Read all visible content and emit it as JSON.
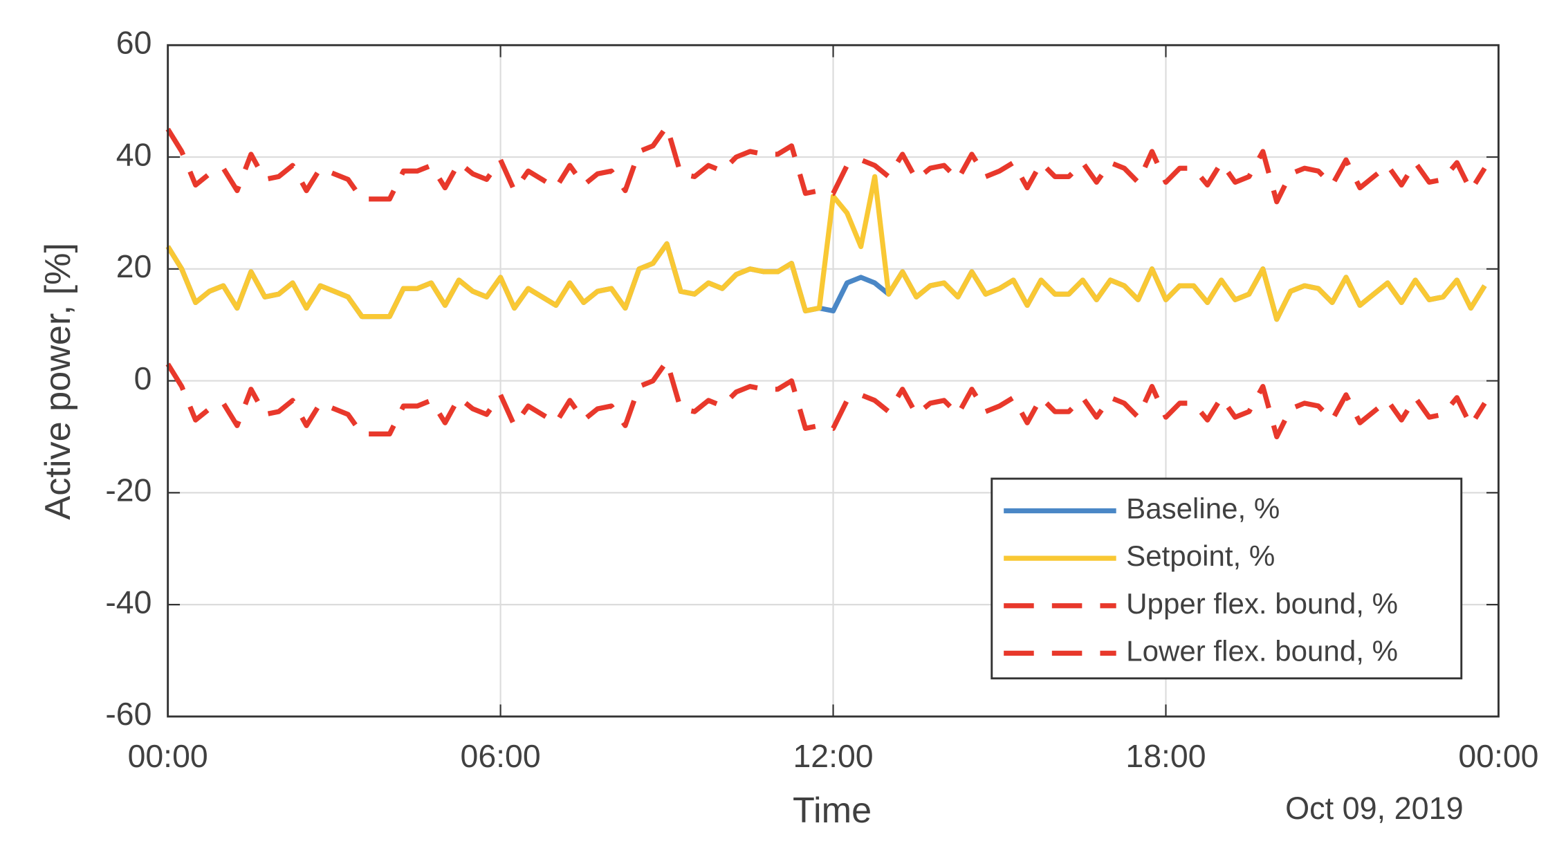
{
  "chart_data": {
    "type": "line",
    "xlabel": "Time",
    "ylabel": "Active power, [%]",
    "annotation": "Oct 09, 2019",
    "grid": true,
    "legend": "lower right",
    "xlim": [
      0,
      24
    ],
    "xticks": [
      {
        "value": 0,
        "label": "00:00"
      },
      {
        "value": 6,
        "label": "06:00"
      },
      {
        "value": 12,
        "label": "12:00"
      },
      {
        "value": 18,
        "label": "18:00"
      },
      {
        "value": 24,
        "label": "00:00"
      }
    ],
    "ylim": [
      -60,
      60
    ],
    "yticks": [
      -60,
      -40,
      -20,
      0,
      20,
      40,
      60
    ],
    "x": [
      0,
      0.25,
      0.5,
      0.75,
      1,
      1.25,
      1.5,
      1.75,
      2,
      2.25,
      2.5,
      2.75,
      3,
      3.25,
      3.5,
      3.75,
      4,
      4.25,
      4.5,
      4.75,
      5,
      5.25,
      5.5,
      5.75,
      6,
      6.25,
      6.5,
      6.75,
      7,
      7.25,
      7.5,
      7.75,
      8,
      8.25,
      8.5,
      8.75,
      9,
      9.25,
      9.5,
      9.75,
      10,
      10.25,
      10.5,
      10.75,
      11,
      11.25,
      11.5,
      11.75,
      12,
      12.25,
      12.5,
      12.75,
      13,
      13.25,
      13.5,
      13.75,
      14,
      14.25,
      14.5,
      14.75,
      15,
      15.25,
      15.5,
      15.75,
      16,
      16.25,
      16.5,
      16.75,
      17,
      17.25,
      17.5,
      17.75,
      18,
      18.25,
      18.5,
      18.75,
      19,
      19.25,
      19.5,
      19.75,
      20,
      20.25,
      20.5,
      20.75,
      21,
      21.25,
      21.5,
      21.75,
      22,
      22.25,
      22.5,
      22.75,
      23,
      23.25,
      23.5,
      23.75
    ],
    "series": [
      {
        "name": "Baseline, %",
        "color": "#4a87c6",
        "dash": false,
        "values": [
          24,
          20,
          14,
          16,
          17,
          13,
          19.5,
          15,
          15.5,
          17.5,
          13,
          17,
          16,
          15,
          11.5,
          11.5,
          11.5,
          16.5,
          16.5,
          17.5,
          13.5,
          18,
          16,
          15,
          18.5,
          13,
          16.5,
          15,
          13.5,
          17.5,
          14,
          16,
          16.5,
          13,
          20,
          21,
          24.5,
          16,
          15.5,
          17.5,
          16.5,
          19,
          20,
          19.5,
          19.5,
          21,
          12.5,
          13,
          12.5,
          17.5,
          18.5,
          17.5,
          15.5,
          19.5,
          15,
          17,
          17.5,
          15,
          19.5,
          15.5,
          16.5,
          18,
          13.5,
          18,
          15.5,
          15.5,
          18,
          14.5,
          18,
          17,
          14.5,
          20,
          14.5,
          17,
          17,
          14,
          18,
          14.5,
          15.5,
          20,
          11,
          16,
          17,
          16.5,
          14,
          18.5,
          13.5,
          15.5,
          17.5,
          14,
          18,
          14.5,
          15,
          18,
          13,
          17
        ]
      },
      {
        "name": "Setpoint, %",
        "color": "#f9c834",
        "dash": false,
        "values": [
          24,
          20,
          14,
          16,
          17,
          13,
          19.5,
          15,
          15.5,
          17.5,
          13,
          17,
          16,
          15,
          11.5,
          11.5,
          11.5,
          16.5,
          16.5,
          17.5,
          13.5,
          18,
          16,
          15,
          18.5,
          13,
          16.5,
          15,
          13.5,
          17.5,
          14,
          16,
          16.5,
          13,
          20,
          21,
          24.5,
          16,
          15.5,
          17.5,
          16.5,
          19,
          20,
          19.5,
          19.5,
          21,
          12.5,
          13,
          33,
          30,
          24,
          36.5,
          15.5,
          19.5,
          15,
          17,
          17.5,
          15,
          19.5,
          15.5,
          16.5,
          18,
          13.5,
          18,
          15.5,
          15.5,
          18,
          14.5,
          18,
          17,
          14.5,
          20,
          14.5,
          17,
          17,
          14,
          18,
          14.5,
          15.5,
          20,
          11,
          16,
          17,
          16.5,
          14,
          18.5,
          13.5,
          15.5,
          17.5,
          14,
          18,
          14.5,
          15,
          18,
          13,
          17
        ]
      },
      {
        "name": "Upper flex. bound, %",
        "color": "#e8382b",
        "dash": true,
        "values": [
          45,
          41,
          35,
          37,
          38,
          34,
          40.5,
          36,
          36.5,
          38.5,
          34,
          38,
          37,
          36,
          32.5,
          32.5,
          32.5,
          37.5,
          37.5,
          38.5,
          34.5,
          39,
          37,
          36,
          39.5,
          34,
          37.5,
          36,
          34.5,
          38.5,
          35,
          37,
          37.5,
          34,
          41,
          42,
          45.5,
          37,
          36.5,
          38.5,
          37.5,
          40,
          41,
          40.5,
          40.5,
          42,
          33.5,
          34,
          33.5,
          38.5,
          39.5,
          38.5,
          36.5,
          40.5,
          36,
          38,
          38.5,
          36,
          40.5,
          36.5,
          37.5,
          39,
          34.5,
          39,
          36.5,
          36.5,
          39,
          35.5,
          39,
          38,
          35.5,
          41,
          35.5,
          38,
          38,
          35,
          39,
          35.5,
          36.5,
          41,
          32,
          37,
          38,
          37.5,
          35,
          39.5,
          34.5,
          36.5,
          38.5,
          35,
          39,
          35.5,
          36,
          39,
          34,
          38
        ]
      },
      {
        "name": "Lower flex. bound, %",
        "color": "#e8382b",
        "dash": true,
        "values": [
          3,
          -1,
          -7,
          -5,
          -4,
          -8,
          -1.5,
          -6,
          -5.5,
          -3.5,
          -8,
          -4,
          -5,
          -6,
          -9.5,
          -9.5,
          -9.5,
          -4.5,
          -4.5,
          -3.5,
          -7.5,
          -3,
          -5,
          -6,
          -2.5,
          -8,
          -4.5,
          -6,
          -7.5,
          -3.5,
          -7,
          -5,
          -4.5,
          -8,
          -1,
          0,
          3.5,
          -5,
          -5.5,
          -3.5,
          -4.5,
          -2,
          -1,
          -1.5,
          -1.5,
          0,
          -8.5,
          -8,
          -8.5,
          -3.5,
          -2.5,
          -3.5,
          -5.5,
          -1.5,
          -6,
          -4,
          -3.5,
          -6,
          -1.5,
          -5.5,
          -4.5,
          -3,
          -7.5,
          -3,
          -5.5,
          -5.5,
          -3,
          -6.5,
          -3,
          -4,
          -6.5,
          -1,
          -6.5,
          -4,
          -4,
          -7,
          -3,
          -6.5,
          -5.5,
          -1,
          -10,
          -5,
          -4,
          -4.5,
          -7,
          -2.5,
          -7.5,
          -5.5,
          -3.5,
          -7,
          -3,
          -6.5,
          -6,
          -3,
          -8,
          -4
        ]
      }
    ]
  }
}
